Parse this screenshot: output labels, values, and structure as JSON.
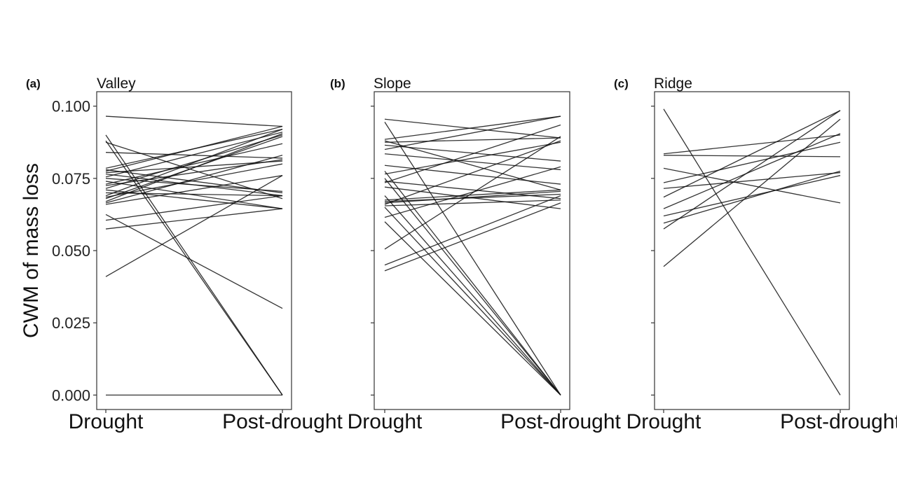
{
  "chart_data": {
    "type": "line",
    "ylabel": "CWM of mass loss",
    "ylim": [
      -0.005,
      0.105
    ],
    "yticks": [
      0.0,
      0.025,
      0.05,
      0.075,
      0.1
    ],
    "ytick_labels": [
      "0.000",
      "0.025",
      "0.050",
      "0.075",
      "0.100"
    ],
    "categories": [
      "Drought",
      "Post-drought"
    ],
    "panels": [
      {
        "tag": "(a)",
        "title": "Valley",
        "series": [
          {
            "values": [
              0.0965,
              0.093
            ]
          },
          {
            "values": [
              0.09,
              0.0
            ]
          },
          {
            "values": [
              0.088,
              0.0
            ]
          },
          {
            "values": [
              0.0875,
              0.068
            ]
          },
          {
            "values": [
              0.084,
              0.082
            ]
          },
          {
            "values": [
              0.0785,
              0.092
            ]
          },
          {
            "values": [
              0.078,
              0.07
            ]
          },
          {
            "values": [
              0.0775,
              0.093
            ]
          },
          {
            "values": [
              0.077,
              0.081
            ]
          },
          {
            "values": [
              0.0765,
              0.069
            ]
          },
          {
            "values": [
              0.0755,
              0.091
            ]
          },
          {
            "values": [
              0.075,
              0.0705
            ]
          },
          {
            "values": [
              0.074,
              0.0645
            ]
          },
          {
            "values": [
              0.073,
              0.087
            ]
          },
          {
            "values": [
              0.0725,
              0.0815
            ]
          },
          {
            "values": [
              0.0715,
              0.09
            ]
          },
          {
            "values": [
              0.071,
              0.0645
            ]
          },
          {
            "values": [
              0.07,
              0.069
            ]
          },
          {
            "values": [
              0.069,
              0.092
            ]
          },
          {
            "values": [
              0.0685,
              0.08
            ]
          },
          {
            "values": [
              0.068,
              0.0895
            ]
          },
          {
            "values": [
              0.067,
              0.0905
            ]
          },
          {
            "values": [
              0.0665,
              0.083
            ]
          },
          {
            "values": [
              0.066,
              0.076
            ]
          },
          {
            "values": [
              0.0625,
              0.03
            ]
          },
          {
            "values": [
              0.0605,
              0.069
            ]
          },
          {
            "values": [
              0.0575,
              0.0645
            ]
          },
          {
            "values": [
              0.041,
              0.076
            ]
          },
          {
            "values": [
              0.0,
              0.0
            ]
          }
        ]
      },
      {
        "tag": "(b)",
        "title": "Slope",
        "series": [
          {
            "values": [
              0.0955,
              0.089
            ]
          },
          {
            "values": [
              0.0945,
              0.0
            ]
          },
          {
            "values": [
              0.0885,
              0.0965
            ]
          },
          {
            "values": [
              0.088,
              0.071
            ]
          },
          {
            "values": [
              0.0875,
              0.089
            ]
          },
          {
            "values": [
              0.0865,
              0.081
            ]
          },
          {
            "values": [
              0.085,
              0.0965
            ]
          },
          {
            "values": [
              0.0835,
              0.078
            ]
          },
          {
            "values": [
              0.0795,
              0.073
            ]
          },
          {
            "values": [
              0.0775,
              0.0
            ]
          },
          {
            "values": [
              0.0765,
              0.0875
            ]
          },
          {
            "values": [
              0.075,
              0.0
            ]
          },
          {
            "values": [
              0.074,
              0.068
            ]
          },
          {
            "values": [
              0.0735,
              0.0935
            ]
          },
          {
            "values": [
              0.072,
              0.0645
            ]
          },
          {
            "values": [
              0.069,
              0.0
            ]
          },
          {
            "values": [
              0.0675,
              0.071
            ]
          },
          {
            "values": [
              0.067,
              0.0695
            ]
          },
          {
            "values": [
              0.0665,
              0.0705
            ]
          },
          {
            "values": [
              0.066,
              0.088
            ]
          },
          {
            "values": [
              0.0655,
              0.0675
            ]
          },
          {
            "values": [
              0.065,
              0.0
            ]
          },
          {
            "values": [
              0.0615,
              0.079
            ]
          },
          {
            "values": [
              0.06,
              0.0
            ]
          },
          {
            "values": [
              0.0505,
              0.0895
            ]
          },
          {
            "values": [
              0.045,
              0.069
            ]
          },
          {
            "values": [
              0.043,
              0.0665
            ]
          }
        ]
      },
      {
        "tag": "(c)",
        "title": "Ridge",
        "series": [
          {
            "values": [
              0.099,
              0.0
            ]
          },
          {
            "values": [
              0.0835,
              0.09
            ]
          },
          {
            "values": [
              0.083,
              0.0825
            ]
          },
          {
            "values": [
              0.0785,
              0.0665
            ]
          },
          {
            "values": [
              0.0735,
              0.0875
            ]
          },
          {
            "values": [
              0.0715,
              0.077
            ]
          },
          {
            "values": [
              0.0685,
              0.0985
            ]
          },
          {
            "values": [
              0.0645,
              0.0905
            ]
          },
          {
            "values": [
              0.062,
              0.076
            ]
          },
          {
            "values": [
              0.0595,
              0.0775
            ]
          },
          {
            "values": [
              0.0575,
              0.0985
            ]
          },
          {
            "values": [
              0.0445,
              0.0955
            ]
          }
        ]
      }
    ]
  }
}
